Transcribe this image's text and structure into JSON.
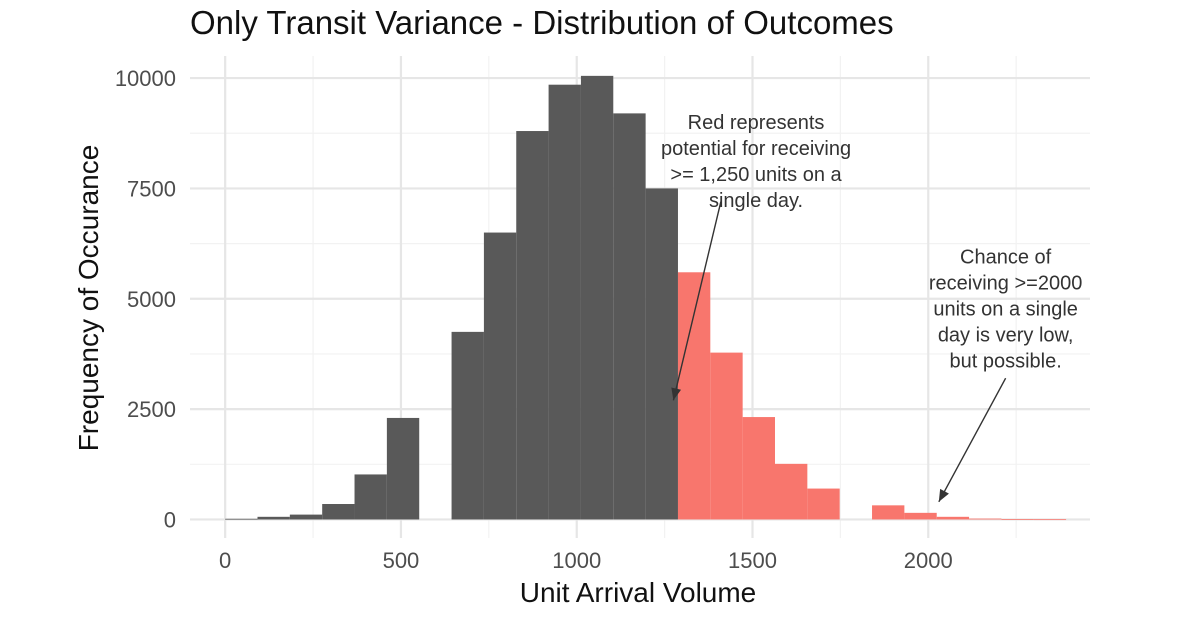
{
  "chart_data": {
    "type": "bar",
    "title": "Only Transit Variance - Distribution of Outcomes",
    "xlabel": "Unit Arrival Volume",
    "ylabel": "Frequency of Occurance",
    "bin_width": 92,
    "xlim": [
      -100,
      2460
    ],
    "ylim": [
      -420,
      10500
    ],
    "x_ticks": [
      0,
      500,
      1000,
      1500,
      2000
    ],
    "x_tick_labels": [
      "0",
      "500",
      "1000",
      "1500",
      "2000"
    ],
    "y_ticks": [
      0,
      2500,
      5000,
      7500,
      10000
    ],
    "y_tick_labels": [
      "0",
      "2500",
      "5000",
      "7500",
      "10000"
    ],
    "grid": true,
    "colors": {
      "below": "#595959",
      "above": "#f8766d"
    },
    "threshold": 1250,
    "bins": [
      {
        "x": 46,
        "value": 15,
        "group": "below"
      },
      {
        "x": 138,
        "value": 60,
        "group": "below"
      },
      {
        "x": 230,
        "value": 110,
        "group": "below"
      },
      {
        "x": 322,
        "value": 350,
        "group": "below"
      },
      {
        "x": 414,
        "value": 1020,
        "group": "below"
      },
      {
        "x": 506,
        "value": 2300,
        "group": "below"
      },
      {
        "x": 598,
        "value": 0,
        "group": "below"
      },
      {
        "x": 690,
        "value": 4250,
        "group": "below"
      },
      {
        "x": 782,
        "value": 6500,
        "group": "below"
      },
      {
        "x": 874,
        "value": 8800,
        "group": "below"
      },
      {
        "x": 966,
        "value": 9850,
        "group": "below"
      },
      {
        "x": 1058,
        "value": 10050,
        "group": "below"
      },
      {
        "x": 1150,
        "value": 9200,
        "group": "below"
      },
      {
        "x": 1242,
        "value": 7500,
        "group": "below"
      },
      {
        "x": 1334,
        "value": 5600,
        "group": "above"
      },
      {
        "x": 1426,
        "value": 3780,
        "group": "above"
      },
      {
        "x": 1518,
        "value": 2320,
        "group": "above"
      },
      {
        "x": 1610,
        "value": 1260,
        "group": "above"
      },
      {
        "x": 1702,
        "value": 700,
        "group": "above"
      },
      {
        "x": 1794,
        "value": 0,
        "group": "above"
      },
      {
        "x": 1886,
        "value": 320,
        "group": "above"
      },
      {
        "x": 1978,
        "value": 150,
        "group": "above"
      },
      {
        "x": 2070,
        "value": 60,
        "group": "above"
      },
      {
        "x": 2162,
        "value": 20,
        "group": "above"
      },
      {
        "x": 2254,
        "value": 10,
        "group": "above"
      },
      {
        "x": 2346,
        "value": 5,
        "group": "above"
      }
    ],
    "annotations": [
      {
        "lines": [
          "Red represents",
          "potential for receiving",
          ">= 1,250 units on a",
          "single day."
        ],
        "x": 1510,
        "y": 8850,
        "arrow_from": [
          1410,
          7200
        ],
        "arrow_to": [
          1275,
          2700
        ]
      },
      {
        "lines": [
          "Chance of",
          "receiving >=2000",
          "units on a single",
          "day is very low,",
          "but possible."
        ],
        "x": 2220,
        "y": 5800,
        "arrow_from": [
          2220,
          3200
        ],
        "arrow_to": [
          2030,
          400
        ]
      }
    ]
  }
}
